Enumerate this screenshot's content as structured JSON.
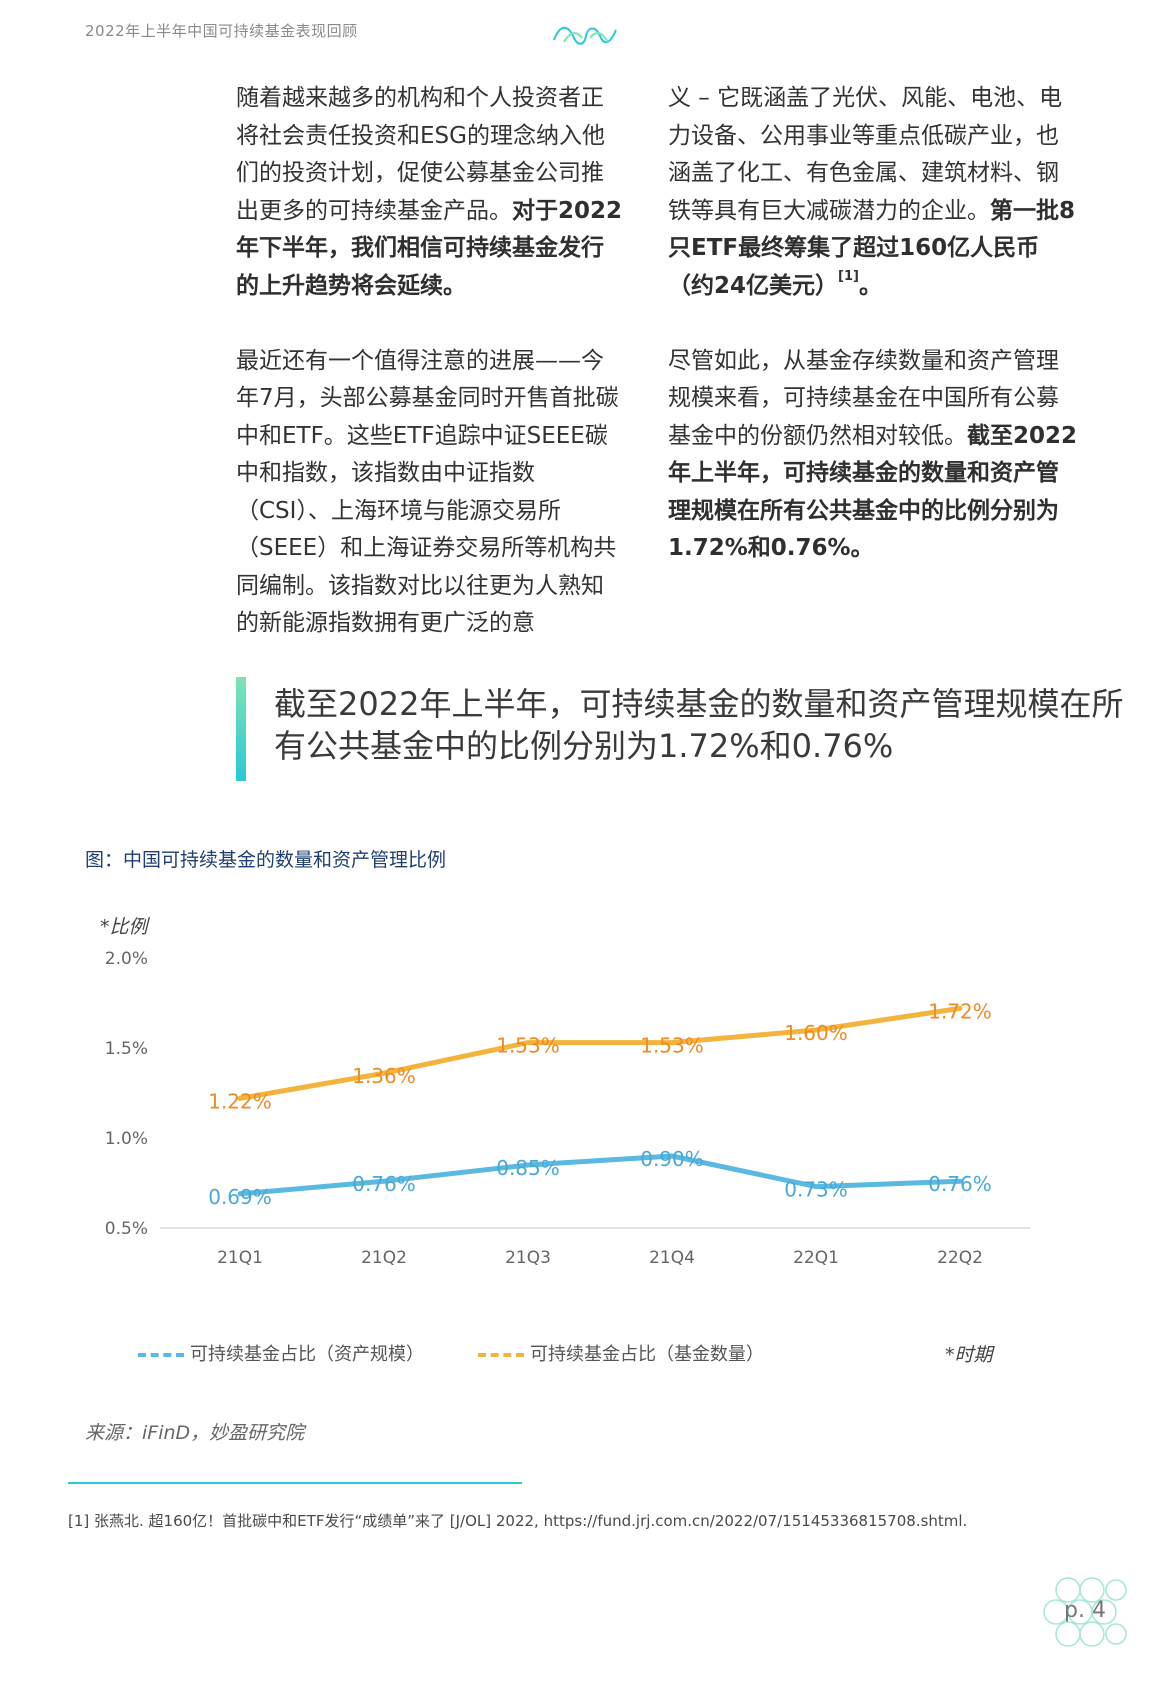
{
  "header": {
    "running_title": "2022年上半年中国可持续基金表现回顾"
  },
  "body": {
    "left_column": {
      "para1_text": "随着越来越多的机构和个人投资者正将社会责任投资和ESG的理念纳入他们的投资计划，促使公募基金公司推出更多的可持续基金产品。",
      "para1_bold": "对于2022年下半年，我们相信可持续基金发行的上升趋势将会延续。",
      "para2_text": "最近还有一个值得注意的进展——今年7月，头部公募基金同时开售首批碳中和ETF。这些ETF追踪中证SEEE碳中和指数，该指数由中证指数（CSI）、上海环境与能源交易所（SEEE）和上海证券交易所等机构共同编制。该指数对比以往更为人熟知的新能源指数拥有更广泛的意"
    },
    "right_column": {
      "para1_text": "义 – 它既涵盖了光伏、风能、电池、电力设备、公用事业等重点低碳产业，也涵盖了化工、有色金属、建筑材料、钢铁等具有巨大减碳潜力的企业。",
      "para1_bold": "第一批8只ETF最终筹集了超过160亿人民币（约24亿美元）",
      "para1_ref": "[1]",
      "para1_end": "。",
      "para2_text": "尽管如此，从基金存续数量和资产管理规模来看，可持续基金在中国所有公募基金中的份额仍然相对较低。",
      "para2_bold": "截至2022年上半年，可持续基金的数量和资产管理规模在所有公共基金中的比例分别为1.72%和0.76%。"
    }
  },
  "pull_quote": {
    "text": "截至2022年上半年，可持续基金的数量和资产管理规模在所有公共基金中的比例分别为1.72%和0.76%"
  },
  "figure": {
    "title": "图：中国可持续基金的数量和资产管理比例",
    "source": "来源：iFinD，妙盈研究院"
  },
  "chart_data": {
    "type": "line",
    "title": "图：中国可持续基金的数量和资产管理比例",
    "ylabel": "*比例",
    "xlabel": "*时期",
    "categories": [
      "21Q1",
      "21Q2",
      "21Q3",
      "21Q4",
      "22Q1",
      "22Q2"
    ],
    "ylim": [
      0.5,
      2.0
    ],
    "yticks": [
      "0.5%",
      "1.0%",
      "1.5%",
      "2.0%"
    ],
    "ytick_values": [
      0.5,
      1.0,
      1.5,
      2.0
    ],
    "grid": false,
    "legend_position": "bottom",
    "series": [
      {
        "name": "可持续基金占比（资产规模）",
        "values": [
          0.69,
          0.76,
          0.85,
          0.9,
          0.73,
          0.76
        ],
        "labels": [
          "0.69%",
          "0.76%",
          "0.85%",
          "0.90%",
          "0.73%",
          "0.76%"
        ],
        "color": "#5ab9e0"
      },
      {
        "name": "可持续基金占比（基金数量）",
        "values": [
          1.22,
          1.36,
          1.53,
          1.53,
          1.6,
          1.72
        ],
        "labels": [
          "1.22%",
          "1.36%",
          "1.53%",
          "1.53%",
          "1.60%",
          "1.72%"
        ],
        "color": "#f2b43c"
      }
    ],
    "label_colors": {
      "asset": "#4aa8d8",
      "count": "#f08a24"
    }
  },
  "footnote": {
    "text": "[1] 张燕北. 超160亿！首批碳中和ETF发行“成绩单”来了 [J/OL] 2022, https://fund.jrj.com.cn/2022/07/15145336815708.shtml."
  },
  "footer": {
    "page_number": "p. 4"
  },
  "colors": {
    "accent_teal": "#29c8d6",
    "accent_green": "#7fe3b4",
    "figure_title": "#1f3f73"
  }
}
